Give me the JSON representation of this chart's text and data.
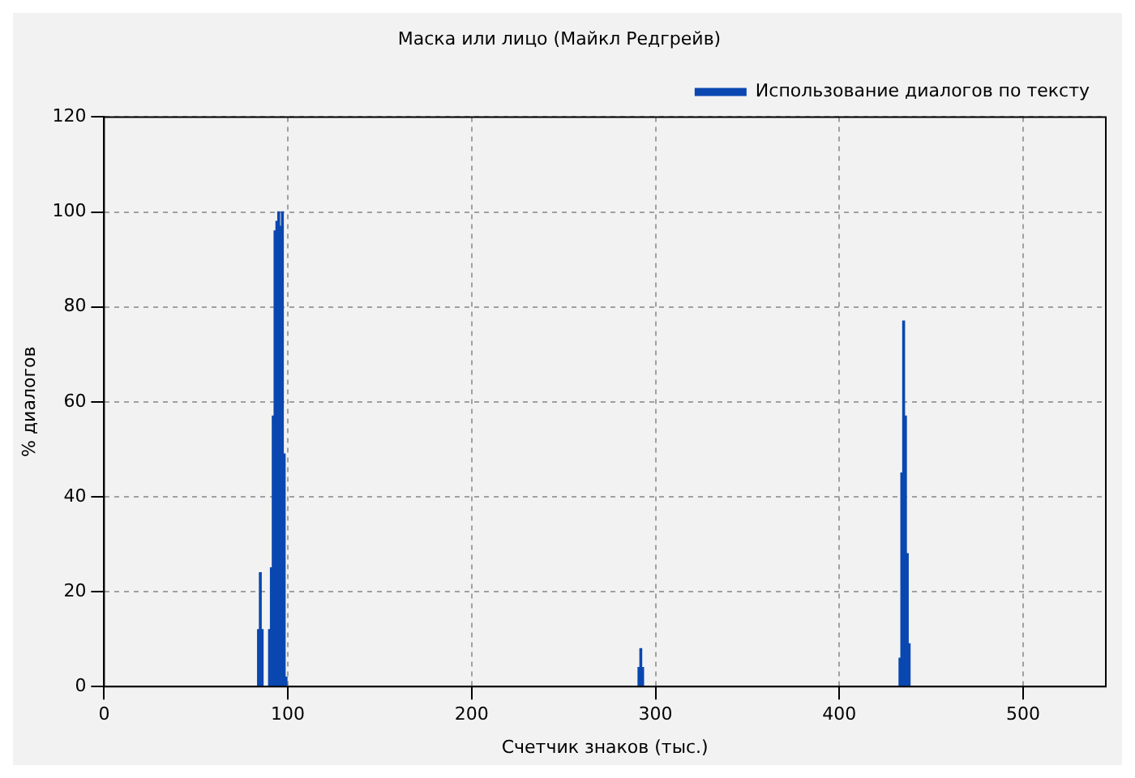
{
  "chart_data": {
    "type": "bar",
    "title": "Маска или лицо (Майкл Редгрейв)",
    "xlabel": "Счетчик знаков (тыс.)",
    "ylabel": "% диалогов",
    "x": [
      84,
      85,
      86,
      90,
      91,
      92,
      93,
      94,
      95,
      96,
      97,
      98,
      99,
      291,
      292,
      293,
      433,
      434,
      435,
      436,
      437,
      438
    ],
    "series": [
      {
        "name": "Использование диалогов по тексту",
        "color": "#0a47b0",
        "values": [
          12,
          24,
          12,
          12,
          25,
          57,
          96,
          98,
          100,
          97,
          100,
          49,
          2,
          4,
          8,
          4,
          6,
          45,
          77,
          57,
          28,
          9
        ]
      }
    ],
    "xlim": [
      0,
      545
    ],
    "xticks": [
      0,
      100,
      200,
      300,
      400,
      500
    ],
    "ylim": [
      0,
      120
    ],
    "yticks": [
      0,
      20,
      40,
      60,
      80,
      100,
      120
    ],
    "grid": true,
    "legend": "top right"
  }
}
